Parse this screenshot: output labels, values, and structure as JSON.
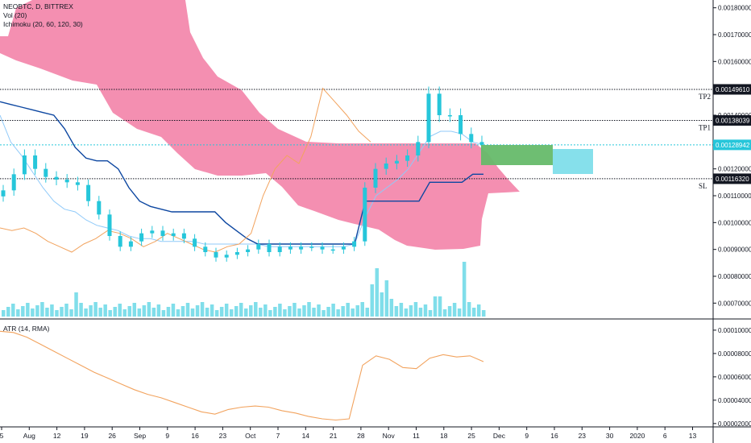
{
  "legend": {
    "symbol": "NEOBTC, D, BITTREX",
    "volume": "Vol (20)",
    "ichimoku": "Ichimoku (20, 60, 120, 30)",
    "atr": "ATR (14, RMA)"
  },
  "colors": {
    "cloud": "#f48fb1",
    "candle": "#26c6da",
    "volume": "#80deea",
    "conversion_line": "#90caf9",
    "base_line": "#0d47a1",
    "lagging_span": "#f2a35e",
    "atr_line": "#f2a35e",
    "target_box": "#66bb6a",
    "stop_box": "#80deea",
    "price_line": "#26c6da"
  },
  "chart_data": [
    {
      "type": "candlestick",
      "title": "NEOBTC, D, BITTREX",
      "x_ticks": [
        "5",
        "Aug",
        "12",
        "19",
        "26",
        "Sep",
        "9",
        "16",
        "23",
        "Oct",
        "7",
        "14",
        "21",
        "28",
        "Nov",
        "11",
        "18",
        "25",
        "Dec",
        "9",
        "16",
        "23",
        "30",
        "2020",
        "6",
        "13"
      ],
      "y_ticks": [
        "0.00180000",
        "0.00170000",
        "0.00160000",
        "0.00150000",
        "0.00140000",
        "0.00130000",
        "0.00120000",
        "0.00110000",
        "0.00100000",
        "0.00090000",
        "0.00080000",
        "0.00070000"
      ],
      "ylim": [
        0.00068,
        0.00182
      ],
      "series": [
        {
          "name": "Close",
          "values": [
            0.00112,
            0.00118,
            0.00125,
            0.0012,
            0.00117,
            0.00116,
            0.00115,
            0.00114,
            0.00108,
            0.00103,
            0.00095,
            0.00091,
            0.00093,
            0.00096,
            0.00097,
            0.00095,
            0.00096,
            0.00094,
            0.00091,
            0.00089,
            0.00087,
            0.00088,
            0.00089,
            0.0009,
            0.00092,
            0.00089,
            0.00091,
            0.0009,
            0.00091,
            0.00091,
            0.0009,
            0.0009,
            0.00091,
            0.00093,
            0.00113,
            0.0012,
            0.00122,
            0.00123,
            0.00125,
            0.0013,
            0.00148,
            0.0014,
            0.0014,
            0.00133,
            0.0013,
            0.00129
          ]
        },
        {
          "name": "Conversion Line",
          "values": [
            0.0014,
            0.0013,
            0.00125,
            0.00119,
            0.00113,
            0.00108,
            0.00105,
            0.00104,
            0.00101,
            0.00099,
            0.00098,
            0.00097,
            0.00095,
            0.00094,
            0.00094,
            0.00093,
            0.00093,
            0.00093,
            0.00093,
            0.00092,
            0.00092,
            0.00092,
            0.00092,
            0.00092,
            0.00092,
            0.00091,
            0.00091,
            0.00091,
            0.00091,
            0.00091,
            0.00091,
            0.00091,
            0.00091,
            0.00092,
            0.00102,
            0.0011,
            0.00113,
            0.00116,
            0.0012,
            0.00126,
            0.00132,
            0.00134,
            0.00134,
            0.00133,
            0.0013,
            0.00129
          ]
        },
        {
          "name": "Base Line",
          "values": [
            0.00145,
            0.00144,
            0.00143,
            0.00142,
            0.00141,
            0.0014,
            0.00135,
            0.00128,
            0.00124,
            0.00123,
            0.00123,
            0.0012,
            0.00113,
            0.00108,
            0.00106,
            0.00105,
            0.00104,
            0.00104,
            0.00104,
            0.00104,
            0.00104,
            0.001,
            0.00097,
            0.00094,
            0.00092,
            0.00092,
            0.00092,
            0.00092,
            0.00092,
            0.00092,
            0.00092,
            0.00092,
            0.00092,
            0.00092,
            0.00108,
            0.00108,
            0.00108,
            0.00108,
            0.00108,
            0.00108,
            0.00115,
            0.00115,
            0.00115,
            0.00115,
            0.00118,
            0.00118
          ]
        },
        {
          "name": "Lagging Span",
          "values": [
            0.00098,
            0.00097,
            0.00098,
            0.00096,
            0.00093,
            0.00091,
            0.00089,
            0.00092,
            0.00094,
            0.00097,
            0.00096,
            0.00094,
            0.00091,
            0.00093,
            0.00096,
            0.00094,
            0.00092,
            0.0009,
            0.00089,
            0.00091,
            0.00092,
            0.00096,
            0.0011,
            0.0012,
            0.00125,
            0.00122,
            0.00132,
            0.0015,
            0.00145,
            0.0014,
            0.00134,
            0.0013
          ]
        }
      ],
      "price_levels": [
        {
          "label": "0.00149610",
          "value": 0.0014961,
          "note": "TP2"
        },
        {
          "label": "0.00138039",
          "value": 0.00138039,
          "note": "TP1"
        },
        {
          "label": "0.00128942",
          "value": 0.00128942,
          "note": "",
          "current": true
        },
        {
          "label": "0.00116320",
          "value": 0.0011632,
          "note": "SL"
        }
      ],
      "levels_display": {
        "TP2": "TP2",
        "TP1": "TP1",
        "SL": "SL"
      },
      "grid": false,
      "legend_position": "top-left"
    },
    {
      "type": "line",
      "title": "ATR (14, RMA)",
      "y_ticks": [
        "0.00010000",
        "0.00008000",
        "0.00006000",
        "0.00004000",
        "0.00002000"
      ],
      "ylim": [
        1.85e-05,
        0.000102
      ],
      "series": [
        {
          "name": "ATR",
          "values": [
            9.9e-05,
            9.8e-05,
            9.4e-05,
            8.8e-05,
            8.2e-05,
            7.6e-05,
            7e-05,
            6.4e-05,
            5.9e-05,
            5.4e-05,
            4.9e-05,
            4.5e-05,
            4.2e-05,
            3.8e-05,
            3.4e-05,
            3e-05,
            2.8e-05,
            3.2e-05,
            3.4e-05,
            3.5e-05,
            3.4e-05,
            3.1e-05,
            2.9e-05,
            2.6e-05,
            2.4e-05,
            2.3e-05,
            2.4e-05,
            7e-05,
            7.8e-05,
            7.5e-05,
            6.8e-05,
            6.7e-05,
            7.6e-05,
            7.9e-05,
            7.7e-05,
            7.8e-05,
            7.3e-05
          ]
        }
      ],
      "grid": false,
      "legend_position": "top-left"
    }
  ]
}
